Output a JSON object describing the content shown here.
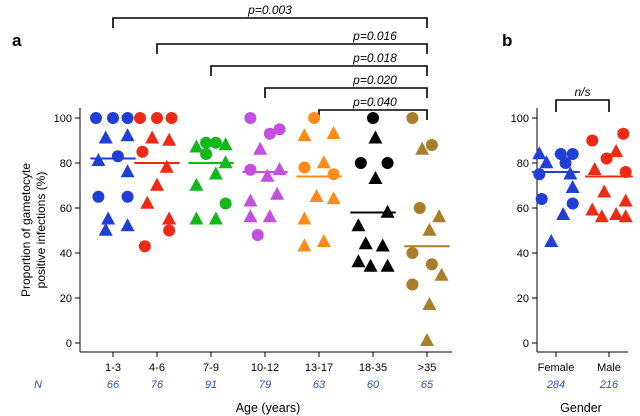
{
  "chart_data": [
    {
      "panel_label": "a",
      "type": "scatter",
      "ylabel_line1": "Proportion of gametocyte",
      "ylabel_line2": "positive infections (%)",
      "xlabel": "Age (years)",
      "n_label": "N",
      "yticks": [
        "0",
        "20",
        "40",
        "60",
        "80",
        "100"
      ],
      "ylim": [
        0,
        100
      ],
      "categories": [
        "1-3",
        "4-6",
        "7-9",
        "10-12",
        "13-17",
        "18-35",
        ">35"
      ],
      "n_values": [
        "66",
        "76",
        "91",
        "79",
        "63",
        "60",
        "65"
      ],
      "comparisons": [
        {
          "from": "1-3",
          "to": ">35",
          "label": "p=0.003"
        },
        {
          "from": "4-6",
          "to": ">35",
          "label": "p=0.016"
        },
        {
          "from": "7-9",
          "to": ">35",
          "label": "p=0.018"
        },
        {
          "from": "10-12",
          "to": ">35",
          "label": "p=0.020"
        },
        {
          "from": "13-17",
          "to": ">35",
          "label": "p=0.040"
        }
      ],
      "series": [
        {
          "name": "1-3",
          "color": "#1f3fd6",
          "median": 82,
          "points": [
            {
              "o": -0.35,
              "v": 100,
              "s": "circle"
            },
            {
              "o": 0,
              "v": 100,
              "s": "circle"
            },
            {
              "o": 0.3,
              "v": 100,
              "s": "circle"
            },
            {
              "o": -0.15,
              "v": 91,
              "s": "triangle"
            },
            {
              "o": 0.3,
              "v": 92,
              "s": "triangle"
            },
            {
              "o": -0.3,
              "v": 81,
              "s": "triangle"
            },
            {
              "o": 0.1,
              "v": 83,
              "s": "circle"
            },
            {
              "o": 0.3,
              "v": 76,
              "s": "triangle"
            },
            {
              "o": -0.3,
              "v": 65,
              "s": "circle"
            },
            {
              "o": 0.3,
              "v": 65,
              "s": "circle"
            },
            {
              "o": -0.1,
              "v": 55,
              "s": "triangle"
            },
            {
              "o": 0.3,
              "v": 52,
              "s": "triangle"
            },
            {
              "o": -0.15,
              "v": 50,
              "s": "triangle"
            }
          ]
        },
        {
          "name": "4-6",
          "color": "#ee2a16",
          "median": 80,
          "points": [
            {
              "o": -0.35,
              "v": 100,
              "s": "circle"
            },
            {
              "o": 0,
              "v": 100,
              "s": "circle"
            },
            {
              "o": 0.3,
              "v": 100,
              "s": "circle"
            },
            {
              "o": -0.1,
              "v": 91,
              "s": "triangle"
            },
            {
              "o": 0.25,
              "v": 90,
              "s": "triangle"
            },
            {
              "o": -0.3,
              "v": 85,
              "s": "circle"
            },
            {
              "o": 0.2,
              "v": 78,
              "s": "triangle"
            },
            {
              "o": 0,
              "v": 70,
              "s": "triangle"
            },
            {
              "o": -0.2,
              "v": 62,
              "s": "triangle"
            },
            {
              "o": 0.25,
              "v": 55,
              "s": "triangle"
            },
            {
              "o": 0.25,
              "v": 50,
              "s": "circle"
            },
            {
              "o": -0.25,
              "v": 43,
              "s": "circle"
            }
          ]
        },
        {
          "name": "7-9",
          "color": "#12b81c",
          "median": 80,
          "points": [
            {
              "o": -0.3,
              "v": 87,
              "s": "triangle"
            },
            {
              "o": -0.1,
              "v": 89,
              "s": "circle"
            },
            {
              "o": 0.1,
              "v": 89,
              "s": "circle"
            },
            {
              "o": 0.3,
              "v": 88,
              "s": "triangle"
            },
            {
              "o": -0.1,
              "v": 84,
              "s": "circle"
            },
            {
              "o": 0.3,
              "v": 80,
              "s": "triangle"
            },
            {
              "o": 0.1,
              "v": 75,
              "s": "triangle"
            },
            {
              "o": -0.3,
              "v": 70,
              "s": "triangle"
            },
            {
              "o": 0.3,
              "v": 62,
              "s": "circle"
            },
            {
              "o": -0.3,
              "v": 55,
              "s": "triangle"
            },
            {
              "o": 0.1,
              "v": 55,
              "s": "triangle"
            }
          ]
        },
        {
          "name": "10-12",
          "color": "#c44fe0",
          "median": 76,
          "points": [
            {
              "o": -0.3,
              "v": 100,
              "s": "circle"
            },
            {
              "o": 0.3,
              "v": 95,
              "s": "circle"
            },
            {
              "o": 0.1,
              "v": 93,
              "s": "circle"
            },
            {
              "o": -0.1,
              "v": 86,
              "s": "triangle"
            },
            {
              "o": -0.3,
              "v": 77,
              "s": "circle"
            },
            {
              "o": 0.3,
              "v": 77,
              "s": "triangle"
            },
            {
              "o": 0.05,
              "v": 74,
              "s": "triangle"
            },
            {
              "o": -0.3,
              "v": 63,
              "s": "triangle"
            },
            {
              "o": 0.25,
              "v": 66,
              "s": "triangle"
            },
            {
              "o": 0.1,
              "v": 56,
              "s": "triangle"
            },
            {
              "o": -0.3,
              "v": 56,
              "s": "triangle"
            },
            {
              "o": -0.15,
              "v": 48,
              "s": "circle"
            }
          ]
        },
        {
          "name": "13-17",
          "color": "#ff8c1a",
          "median": 74,
          "points": [
            {
              "o": -0.1,
              "v": 100,
              "s": "circle"
            },
            {
              "o": 0.3,
              "v": 93,
              "s": "triangle"
            },
            {
              "o": -0.3,
              "v": 92,
              "s": "triangle"
            },
            {
              "o": 0.1,
              "v": 80,
              "s": "triangle"
            },
            {
              "o": -0.3,
              "v": 78,
              "s": "circle"
            },
            {
              "o": 0.3,
              "v": 75,
              "s": "circle"
            },
            {
              "o": -0.05,
              "v": 65,
              "s": "triangle"
            },
            {
              "o": 0.3,
              "v": 64,
              "s": "triangle"
            },
            {
              "o": -0.3,
              "v": 55,
              "s": "triangle"
            },
            {
              "o": 0.1,
              "v": 45,
              "s": "triangle"
            },
            {
              "o": -0.3,
              "v": 43,
              "s": "triangle"
            }
          ]
        },
        {
          "name": "18-35",
          "color": "#000000",
          "median": 58,
          "points": [
            {
              "o": 0,
              "v": 100,
              "s": "circle"
            },
            {
              "o": 0.05,
              "v": 91,
              "s": "triangle"
            },
            {
              "o": -0.25,
              "v": 80,
              "s": "circle"
            },
            {
              "o": 0.3,
              "v": 80,
              "s": "circle"
            },
            {
              "o": 0.05,
              "v": 73,
              "s": "triangle"
            },
            {
              "o": 0.3,
              "v": 58,
              "s": "triangle"
            },
            {
              "o": -0.3,
              "v": 52,
              "s": "triangle"
            },
            {
              "o": -0.15,
              "v": 44,
              "s": "triangle"
            },
            {
              "o": 0.2,
              "v": 43,
              "s": "triangle"
            },
            {
              "o": -0.3,
              "v": 36,
              "s": "triangle"
            },
            {
              "o": -0.05,
              "v": 34,
              "s": "triangle"
            },
            {
              "o": 0.3,
              "v": 34,
              "s": "triangle"
            }
          ]
        },
        {
          "name": ">35",
          "color": "#a87e2a",
          "median": 43,
          "points": [
            {
              "o": -0.3,
              "v": 100,
              "s": "circle"
            },
            {
              "o": 0.1,
              "v": 88,
              "s": "circle"
            },
            {
              "o": -0.1,
              "v": 86,
              "s": "triangle"
            },
            {
              "o": -0.15,
              "v": 60,
              "s": "circle"
            },
            {
              "o": 0.25,
              "v": 56,
              "s": "triangle"
            },
            {
              "o": 0.05,
              "v": 50,
              "s": "triangle"
            },
            {
              "o": -0.3,
              "v": 40,
              "s": "circle"
            },
            {
              "o": 0.1,
              "v": 35,
              "s": "circle"
            },
            {
              "o": 0.3,
              "v": 30,
              "s": "triangle"
            },
            {
              "o": -0.3,
              "v": 26,
              "s": "circle"
            },
            {
              "o": 0.05,
              "v": 17,
              "s": "triangle"
            },
            {
              "o": 0,
              "v": 1,
              "s": "triangle"
            }
          ]
        }
      ]
    },
    {
      "panel_label": "b",
      "type": "scatter",
      "xlabel": "Gender",
      "yticks": [
        "0",
        "20",
        "40",
        "60",
        "80",
        "100"
      ],
      "ylim": [
        0,
        100
      ],
      "categories": [
        "Female",
        "Male"
      ],
      "n_values": [
        "284",
        "216"
      ],
      "comparisons": [
        {
          "from": "Female",
          "to": "Male",
          "label": "n/s"
        }
      ],
      "series": [
        {
          "name": "Female",
          "color": "#1f3fd6",
          "median": 76,
          "points": [
            {
              "o": -0.35,
              "v": 84,
              "s": "triangle"
            },
            {
              "o": 0.1,
              "v": 84,
              "s": "circle"
            },
            {
              "o": 0.35,
              "v": 84,
              "s": "circle"
            },
            {
              "o": -0.2,
              "v": 80,
              "s": "triangle"
            },
            {
              "o": 0.2,
              "v": 80,
              "s": "circle"
            },
            {
              "o": -0.35,
              "v": 75,
              "s": "circle"
            },
            {
              "o": 0.3,
              "v": 75,
              "s": "triangle"
            },
            {
              "o": 0.35,
              "v": 69,
              "s": "triangle"
            },
            {
              "o": -0.3,
              "v": 64,
              "s": "circle"
            },
            {
              "o": 0.35,
              "v": 62,
              "s": "circle"
            },
            {
              "o": 0.15,
              "v": 57,
              "s": "triangle"
            },
            {
              "o": -0.1,
              "v": 45,
              "s": "triangle"
            }
          ]
        },
        {
          "name": "Male",
          "color": "#ee2a16",
          "median": 74,
          "points": [
            {
              "o": 0.3,
              "v": 93,
              "s": "circle"
            },
            {
              "o": -0.35,
              "v": 90,
              "s": "circle"
            },
            {
              "o": 0.15,
              "v": 85,
              "s": "triangle"
            },
            {
              "o": -0.05,
              "v": 82,
              "s": "circle"
            },
            {
              "o": 0.35,
              "v": 76,
              "s": "circle"
            },
            {
              "o": -0.3,
              "v": 77,
              "s": "triangle"
            },
            {
              "o": -0.1,
              "v": 67,
              "s": "triangle"
            },
            {
              "o": 0.35,
              "v": 63,
              "s": "triangle"
            },
            {
              "o": -0.35,
              "v": 59,
              "s": "triangle"
            },
            {
              "o": 0.15,
              "v": 57,
              "s": "triangle"
            },
            {
              "o": -0.15,
              "v": 56,
              "s": "triangle"
            },
            {
              "o": 0.35,
              "v": 56,
              "s": "triangle"
            }
          ]
        }
      ]
    }
  ]
}
